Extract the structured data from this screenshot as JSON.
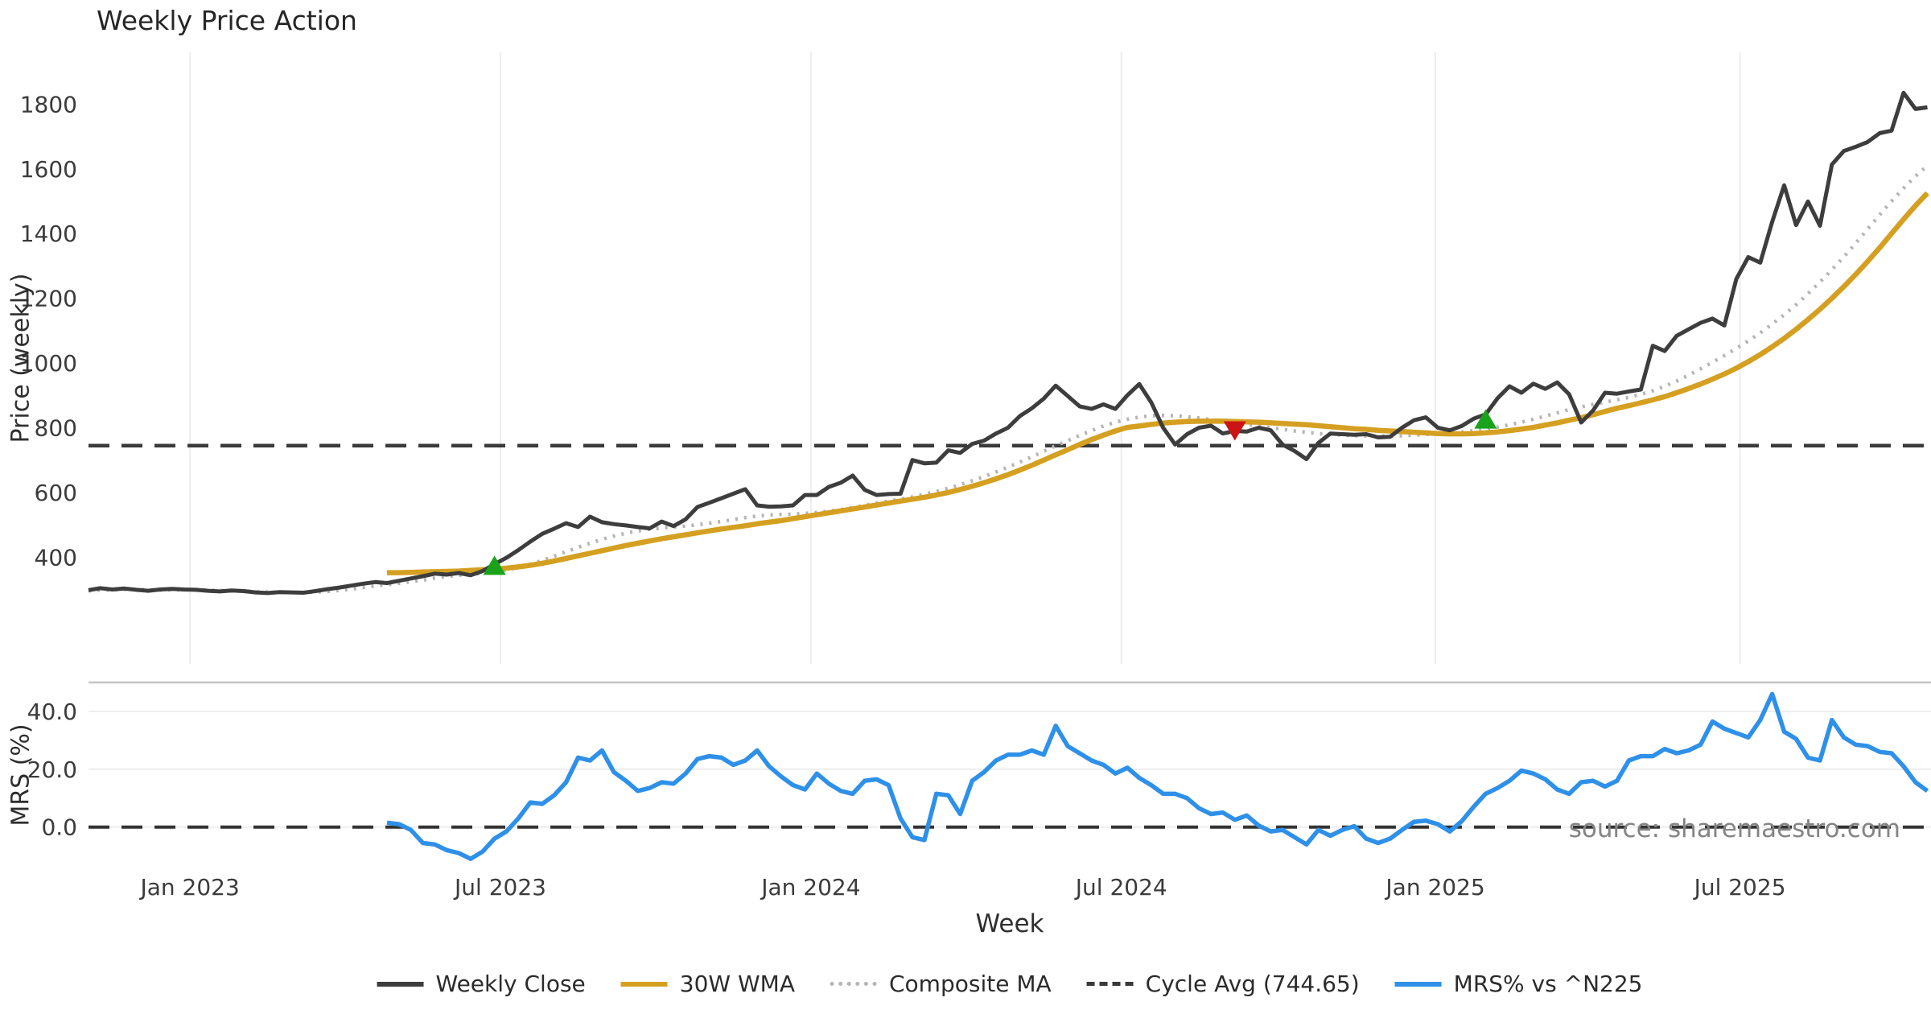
{
  "page": {
    "title": "Weekly Price Action",
    "source_note": "source: sharemaestro.com"
  },
  "legend": {
    "items": [
      {
        "label": "Weekly Close",
        "style": "solid",
        "color": "#3d3d3d"
      },
      {
        "label": "30W WMA",
        "style": "solid",
        "color": "#d5a021"
      },
      {
        "label": "Composite MA",
        "style": "dotted",
        "color": "#b5b5b5"
      },
      {
        "label": "Cycle Avg (744.65)",
        "style": "dashed",
        "color": "#3a3a3a"
      },
      {
        "label": "MRS% vs ^N225",
        "style": "solid",
        "color": "#2e90e8"
      }
    ]
  },
  "chart_data": {
    "type": "line",
    "title": "Weekly Price Action",
    "xlabel": "Week",
    "x_unit": "week index (weekly data, week 0 ≈ Nov 2022)",
    "n_weeks": 155,
    "xlim": [
      0,
      154.3
    ],
    "x_ticks": [
      {
        "week": 8.5,
        "label": "Jan 2023"
      },
      {
        "week": 34.5,
        "label": "Jul 2023"
      },
      {
        "week": 60.5,
        "label": "Jan 2024"
      },
      {
        "week": 86.5,
        "label": "Jul 2024"
      },
      {
        "week": 112.8,
        "label": "Jan 2025"
      },
      {
        "week": 138.3,
        "label": "Jul 2025"
      }
    ],
    "panels": [
      {
        "name": "price",
        "ylabel": "Price (weekly)",
        "ylim": [
          70,
          1960
        ],
        "yticks": [
          400,
          600,
          800,
          1000,
          1200,
          1400,
          1600,
          1800
        ],
        "grid": "vertical",
        "hlines": [
          {
            "label": "Cycle Avg (744.65)",
            "value": 744.65,
            "style": "dashed",
            "color": "#3a3a3a"
          }
        ],
        "series": [
          {
            "name": "Weekly Close",
            "color": "#3d3d3d",
            "style": "solid",
            "width": 5,
            "start_week": 0,
            "values": [
              298,
              304,
              300,
              303,
              299,
              296,
              300,
              302,
              300,
              299,
              296,
              294,
              297,
              295,
              291,
              289,
              292,
              291,
              290,
              295,
              301,
              306,
              312,
              318,
              323,
              320,
              327,
              334,
              341,
              349,
              346,
              351,
              344,
              357,
              378,
              398,
              422,
              448,
              472,
              488,
              505,
              493,
              525,
              508,
              502,
              498,
              493,
              489,
              510,
              496,
              517,
              555,
              568,
              582,
              596,
              610,
              560,
              556,
              557,
              560,
              592,
              592,
              617,
              630,
              652,
              608,
              592,
              595,
              596,
              700,
              690,
              692,
              730,
              722,
              750,
              760,
              782,
              800,
              836,
              860,
              890,
              930,
              898,
              866,
              858,
              872,
              858,
              900,
              935,
              878,
              800,
              748,
              780,
              800,
              806,
              782,
              790,
              788,
              800,
              792,
              748,
              728,
              703,
              753,
              782,
              780,
              778,
              780,
              770,
              772,
              800,
              823,
              832,
              800,
              792,
              805,
              828,
              841,
              891,
              928,
              908,
              936,
              920,
              940,
              903,
              816,
              853,
              908,
              905,
              912,
              918,
              1053,
              1037,
              1084,
              1104,
              1124,
              1137,
              1116,
              1260,
              1327,
              1310,
              1436,
              1549,
              1426,
              1499,
              1424,
              1613,
              1655,
              1668,
              1683,
              1710,
              1718,
              1835,
              1785,
              1790
            ]
          },
          {
            "name": "30W WMA",
            "color": "#d5a021",
            "style": "solid",
            "width": 6.5,
            "start_week": 25,
            "values": [
              352,
              352,
              353,
              354,
              355,
              356,
              357,
              359,
              361,
              363,
              366,
              370,
              375,
              381,
              388,
              396,
              404,
              412,
              420,
              428,
              436,
              443,
              450,
              457,
              463,
              469,
              475,
              481,
              487,
              492,
              497,
              503,
              508,
              513,
              519,
              525,
              531,
              537,
              543,
              549,
              555,
              561,
              567,
              573,
              579,
              585,
              592,
              600,
              609,
              619,
              630,
              642,
              655,
              669,
              684,
              700,
              716,
              732,
              748,
              763,
              777,
              790,
              801,
              805,
              810,
              814,
              817,
              819,
              820,
              820,
              820,
              819,
              818,
              817,
              815,
              813,
              811,
              809,
              806,
              803,
              800,
              797,
              795,
              792,
              790,
              788,
              786,
              784,
              782,
              781,
              781,
              782,
              784,
              787,
              791,
              796,
              801,
              808,
              815,
              823,
              831,
              840,
              850,
              860,
              868,
              877,
              886,
              896,
              908,
              921,
              935,
              950,
              966,
              984,
              1004,
              1026,
              1050,
              1076,
              1104,
              1134,
              1166,
              1200,
              1236,
              1274,
              1314,
              1356,
              1400,
              1444,
              1486,
              1525
            ]
          },
          {
            "name": "Composite MA",
            "color": "#b5b5b5",
            "style": "dotted",
            "width": 4.5,
            "start_week": 0,
            "values": [
              296,
              298,
              299,
              300,
              300,
              299,
              298,
              299,
              299,
              299,
              298,
              297,
              296,
              295,
              293,
              292,
              291,
              291,
              291,
              292,
              294,
              297,
              301,
              306,
              311,
              315,
              319,
              324,
              329,
              335,
              340,
              344,
              347,
              350,
              354,
              360,
              368,
              378,
              390,
              403,
              417,
              430,
              443,
              455,
              465,
              474,
              481,
              486,
              490,
              493,
              496,
              500,
              505,
              510,
              516,
              522,
              527,
              530,
              532,
              533,
              535,
              538,
              542,
              547,
              553,
              560,
              567,
              573,
              579,
              586,
              594,
              603,
              613,
              624,
              636,
              649,
              663,
              678,
              694,
              710,
              727,
              744,
              760,
              776,
              791,
              805,
              817,
              826,
              833,
              837,
              838,
              837,
              834,
              830,
              825,
              820,
              815,
              810,
              805,
              800,
              795,
              790,
              786,
              782,
              779,
              777,
              775,
              774,
              774,
              774,
              775,
              777,
              779,
              781,
              784,
              787,
              791,
              796,
              802,
              809,
              817,
              826,
              836,
              846,
              856,
              864,
              872,
              879,
              886,
              894,
              903,
              914,
              928,
              944,
              962,
              982,
              1002,
              1023,
              1045,
              1068,
              1093,
              1120,
              1149,
              1180,
              1214,
              1250,
              1288,
              1328,
              1370,
              1414,
              1458,
              1500,
              1540,
              1577,
              1610
            ]
          }
        ],
        "markers": [
          {
            "shape": "triangle-up",
            "color": "#1aa31a",
            "week": 34,
            "price": 370
          },
          {
            "shape": "triangle-down",
            "color": "#cc1414",
            "week": 96,
            "price": 795
          },
          {
            "shape": "triangle-up",
            "color": "#1aa31a",
            "week": 117,
            "price": 822
          }
        ]
      },
      {
        "name": "mrs",
        "ylabel": "MRS (%)",
        "ylim": [
          -14,
          50
        ],
        "yticks": [
          0,
          20,
          40
        ],
        "ytick_labels": [
          "0.0",
          "20.0",
          "40.0"
        ],
        "grid": "horizontal",
        "top_spine": true,
        "hlines": [
          {
            "label": "zero line",
            "value": 0,
            "style": "dashed",
            "color": "#333333"
          }
        ],
        "series": [
          {
            "name": "MRS% vs ^N225",
            "color": "#2e90e8",
            "style": "solid",
            "width": 5.5,
            "start_week": 25,
            "values": [
              1.5,
              1,
              -1,
              -5.5,
              -6,
              -8,
              -9,
              -11,
              -8.5,
              -4,
              -1.5,
              3,
              8.5,
              8,
              11,
              15.5,
              24,
              23,
              26.5,
              19,
              16,
              12.5,
              13.5,
              15.5,
              15,
              18.5,
              23.5,
              24.5,
              24,
              21.5,
              23,
              26.5,
              21,
              17.5,
              14.5,
              13,
              18.5,
              15,
              12.5,
              11.5,
              16,
              16.5,
              14.5,
              3,
              -3.5,
              -4.5,
              11.5,
              11,
              4.5,
              16,
              19,
              23,
              25,
              25,
              26.5,
              25,
              35,
              28,
              25.5,
              23,
              21.5,
              18.5,
              20.5,
              17,
              14.5,
              11.5,
              11.5,
              10,
              6.5,
              4.5,
              5,
              2.5,
              4,
              0.5,
              -1.5,
              -1,
              -3.5,
              -6,
              -1,
              -3,
              -1,
              0.3,
              -4,
              -5.5,
              -4,
              -1,
              1.8,
              2.2,
              1,
              -1.5,
              2,
              7,
              11.5,
              13.5,
              16,
              19.5,
              18.5,
              16.5,
              13,
              11.5,
              15.5,
              16,
              14,
              16,
              23,
              24.5,
              24.5,
              27,
              25.5,
              26.5,
              28.5,
              36.5,
              34,
              32.5,
              31,
              37,
              46,
              33,
              30.5,
              24,
              23,
              37,
              31,
              28.5,
              28,
              26,
              25.5,
              21,
              15.5,
              12.5
            ]
          }
        ]
      }
    ],
    "colors": {
      "grid": "#ededed",
      "mrs_grid": "#eeeeee",
      "mrs_top_spine": "#c4c4c4",
      "tick_text": "#3b3b3b"
    }
  }
}
